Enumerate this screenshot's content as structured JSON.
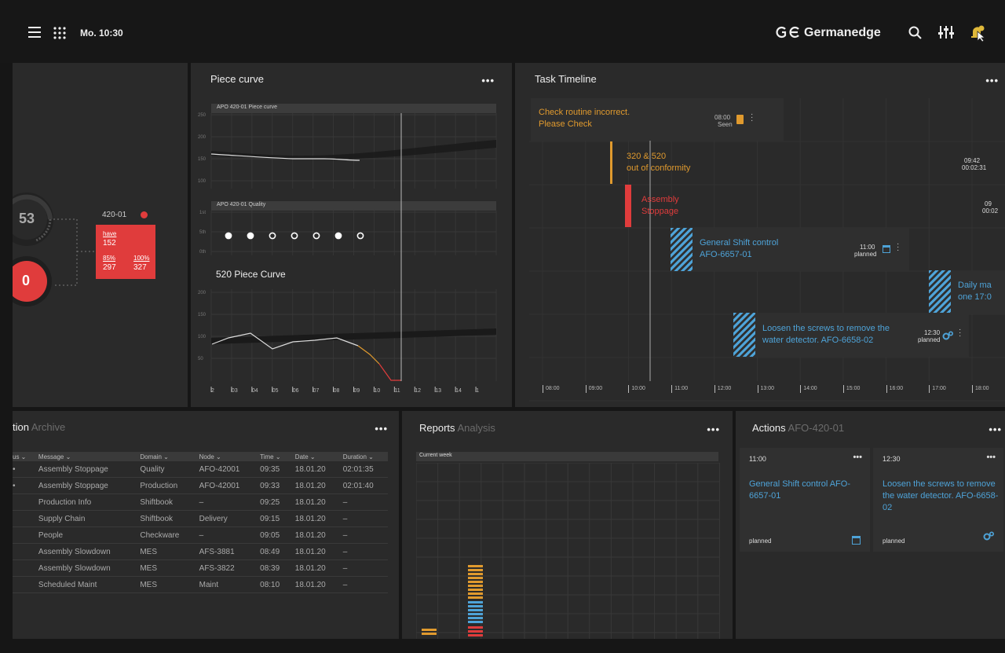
{
  "topbar": {
    "time": "Mo. 10:30",
    "brand": "Germanedge",
    "logo_mark": "GE",
    "icons": [
      "menu-icon",
      "apps-grid-icon",
      "search-icon",
      "sliders-icon",
      "bell-icon"
    ]
  },
  "colors": {
    "orange": "#e09a2e",
    "red": "#e03c3c",
    "blue": "#4ea3d8",
    "panel": "#2a2a2a"
  },
  "machine": {
    "gauge_value": "53",
    "alert_value": "0",
    "id": "420-01",
    "have_label": "have",
    "have_value": "152",
    "p85_label": "85%",
    "p85_value": "297",
    "p100_label": "100%",
    "p100_value": "327"
  },
  "piece_curve": {
    "title": "Piece curve",
    "menu": "•••",
    "chart1_label": "APO 420-01 Piece curve",
    "chart1_ticks": [
      "250",
      "200",
      "150",
      "100"
    ],
    "chart2_label": "APO 420-01 Quality",
    "chart2_ticks": [
      "1st",
      "5th",
      "0th"
    ],
    "quality_points": [
      {
        "x": "1",
        "filled": true
      },
      {
        "x": "2",
        "filled": true
      },
      {
        "x": "3",
        "filled": false
      },
      {
        "x": "4",
        "filled": false
      },
      {
        "x": "5",
        "filled": false
      },
      {
        "x": "6",
        "filled": true
      },
      {
        "x": "7",
        "filled": false
      }
    ],
    "chart3_title": "520 Piece Curve",
    "chart3_ticks": [
      "200",
      "150",
      "100",
      "50"
    ],
    "x_ticks": [
      "2",
      "03",
      "04",
      "05",
      "06",
      "07",
      "08",
      "09",
      "10",
      "11",
      "12",
      "13",
      "14",
      "1"
    ]
  },
  "task_timeline": {
    "title": "Task Timeline",
    "menu": "•••",
    "hours": [
      "08:00",
      "09:00",
      "10:00",
      "11:00",
      "12:00",
      "13:00",
      "14:00",
      "15:00",
      "16:00",
      "17:00",
      "18:00"
    ],
    "cards": [
      {
        "text1": "Check routine incorrect.",
        "text2": "Please Check",
        "time": "08:00",
        "status": "Seen",
        "color": "#e09a2e",
        "icon": "clipboard-icon"
      },
      {
        "text1": "320 & 520",
        "text2": "out of conformity",
        "time": "09:42",
        "status": "00:02:31",
        "color": "#e09a2e"
      },
      {
        "text1": "Assembly",
        "text2": "Stoppage",
        "time": "09",
        "status": "00:02",
        "color": "#e03c3c"
      },
      {
        "text1": "General Shift control",
        "text2": "AFO-6657-01",
        "time": "11:00",
        "status": "planned",
        "color": "#4ea3d8",
        "icon": "calendar-check-icon"
      },
      {
        "text1": "Daily ma",
        "text2": "one 17:0",
        "color": "#4ea3d8"
      },
      {
        "text1": "Loosen the screws to remove the",
        "text2": "water detector. AFO-6658-02",
        "time": "12:30",
        "status": "planned",
        "color": "#4ea3d8",
        "icon": "gears-icon"
      }
    ]
  },
  "archive": {
    "title": "tion",
    "subtitle": "Archive",
    "menu": "•••",
    "columns": [
      "us",
      "Message",
      "Domain",
      "Node",
      "Time",
      "Date",
      "Duration"
    ],
    "rows": [
      [
        "•",
        "Assembly Stoppage",
        "Quality",
        "AFO-42001",
        "09:35",
        "18.01.20",
        "02:01:35"
      ],
      [
        "•",
        "Assembly Stoppage",
        "Production",
        "AFO-42001",
        "09:33",
        "18.01.20",
        "02:01:40"
      ],
      [
        "",
        "Production Info",
        "Shiftbook",
        "–",
        "09:25",
        "18.01.20",
        "–"
      ],
      [
        "",
        "Supply Chain",
        "Shiftbook",
        "Delivery",
        "09:15",
        "18.01.20",
        "–"
      ],
      [
        "",
        "People",
        "Checkware",
        "–",
        "09:05",
        "18.01.20",
        "–"
      ],
      [
        "",
        "Assembly Slowdown",
        "MES",
        "AFS-3881",
        "08:49",
        "18.01.20",
        "–"
      ],
      [
        "",
        "Assembly Slowdown",
        "MES",
        "AFS-3822",
        "08:39",
        "18.01.20",
        "–"
      ],
      [
        "",
        "Scheduled Maint",
        "MES",
        "Maint",
        "08:10",
        "18.01.20",
        "–"
      ]
    ]
  },
  "reports": {
    "title": "Reports",
    "subtitle": "Analysis",
    "menu": "•••",
    "filter": "Current week"
  },
  "actions": {
    "title": "Actions",
    "subtitle": "AFO-420-01",
    "menu": "•••",
    "cards": [
      {
        "time": "11:00",
        "menu": "•••",
        "text": "General Shift control AFO-6657-01",
        "status": "planned",
        "icon": "calendar-check-icon"
      },
      {
        "time": "12:30",
        "menu": "•••",
        "text": "Loosen the screws to remove the water detector. AFO-6658-02",
        "status": "planned",
        "icon": "gears-icon"
      }
    ]
  }
}
